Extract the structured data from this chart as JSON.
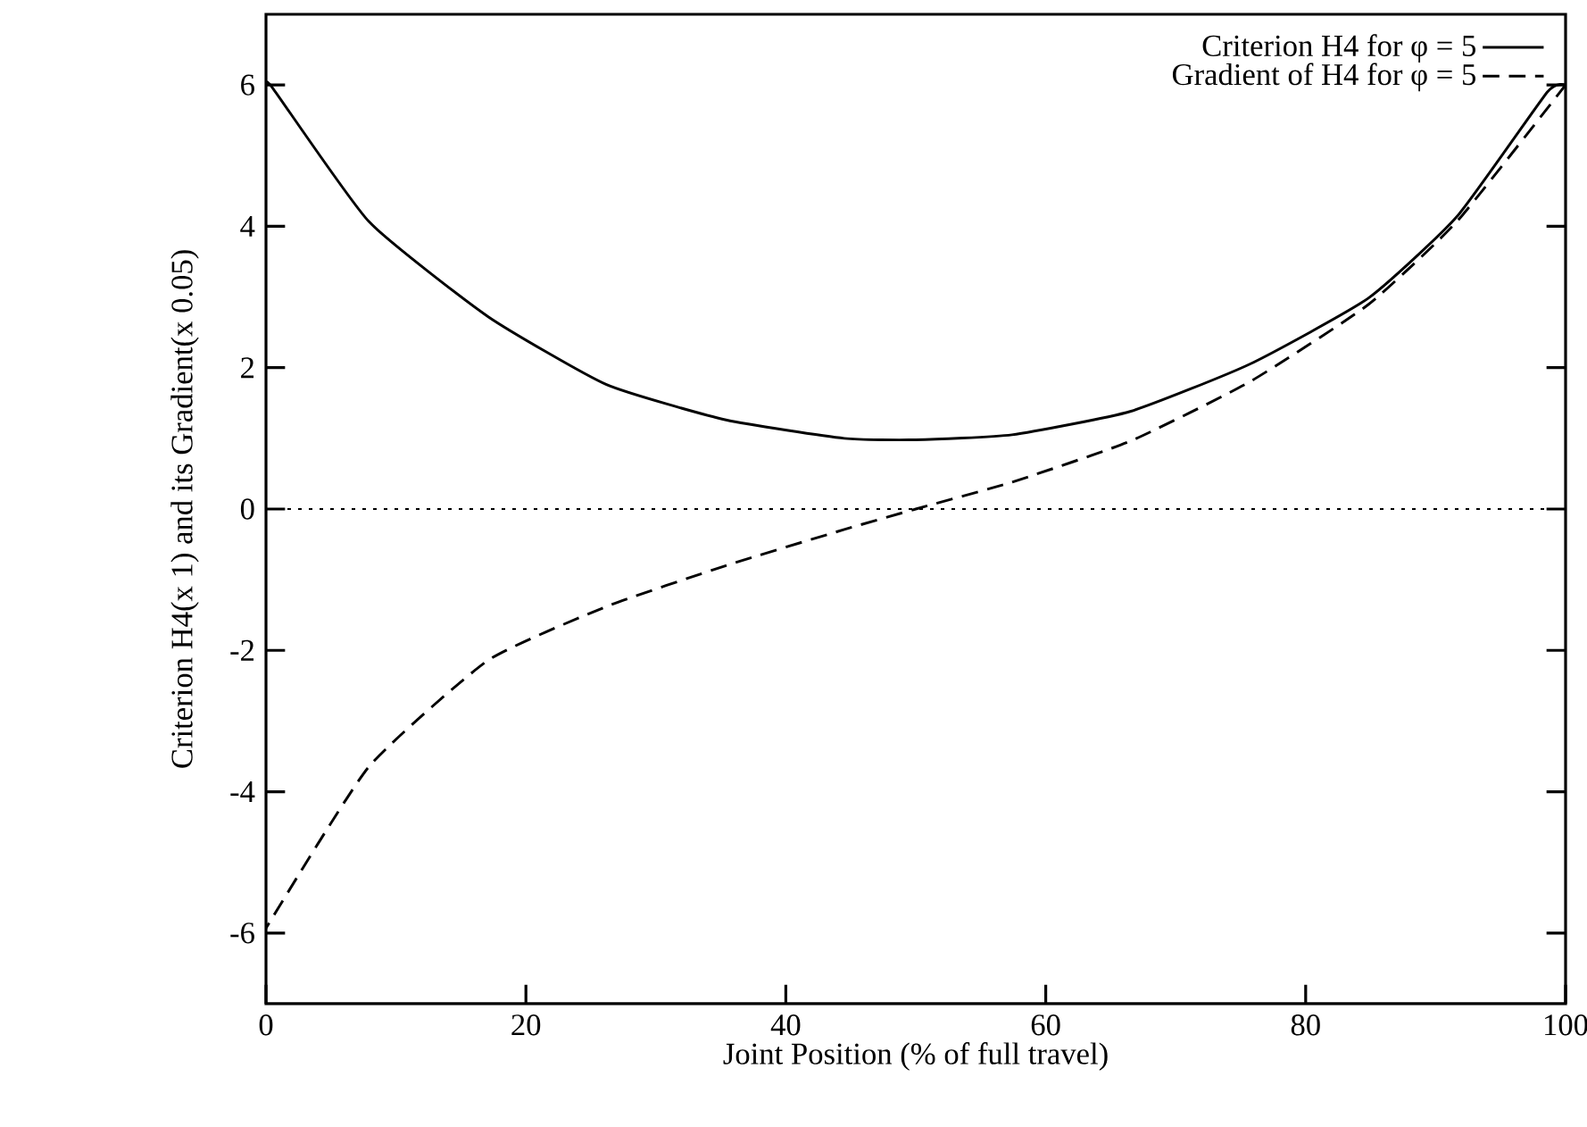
{
  "chart_data": {
    "type": "line",
    "xlabel": "Joint Position (% of full travel)",
    "ylabel": "Criterion H4(x 1) and its Gradient(x 0.05)",
    "xlim": [
      0,
      100
    ],
    "ylim": [
      -7,
      7
    ],
    "xticks": [
      0,
      20,
      40,
      60,
      80,
      100
    ],
    "yticks": [
      -6,
      -4,
      -2,
      0,
      2,
      4,
      6
    ],
    "grid": false,
    "legend": "top right",
    "marker": "none",
    "series": [
      {
        "name": "Criterion H4 for φ = 5",
        "color": "#000000",
        "line_style": "solid",
        "x": [
          0,
          0.5,
          7.9,
          17.1,
          26.2,
          35.4,
          44.5,
          50,
          57.4,
          66.5,
          75.7,
          84.8,
          91.7,
          98.6,
          100
        ],
        "values": [
          6,
          5.96,
          4.07,
          2.72,
          1.76,
          1.26,
          1.0,
          0.98,
          1.05,
          1.38,
          2.05,
          2.98,
          4.15,
          5.9,
          6
        ]
      },
      {
        "name": "Gradient of H4 for φ = 5",
        "color": "#000000",
        "line_style": "dashed",
        "x": [
          0,
          0.1,
          7.9,
          17.1,
          26.2,
          35.4,
          44.5,
          50,
          57.4,
          66.5,
          75.7,
          84.8,
          91.7,
          100
        ],
        "values": [
          -6,
          -5.9,
          -3.65,
          -2.14,
          -1.38,
          -0.8,
          -0.29,
          0,
          0.38,
          0.96,
          1.8,
          2.89,
          4.08,
          6
        ]
      }
    ],
    "ref_lines": [
      {
        "axis": "y",
        "value": 0,
        "line_style": "dotted",
        "color": "#000000"
      }
    ]
  }
}
